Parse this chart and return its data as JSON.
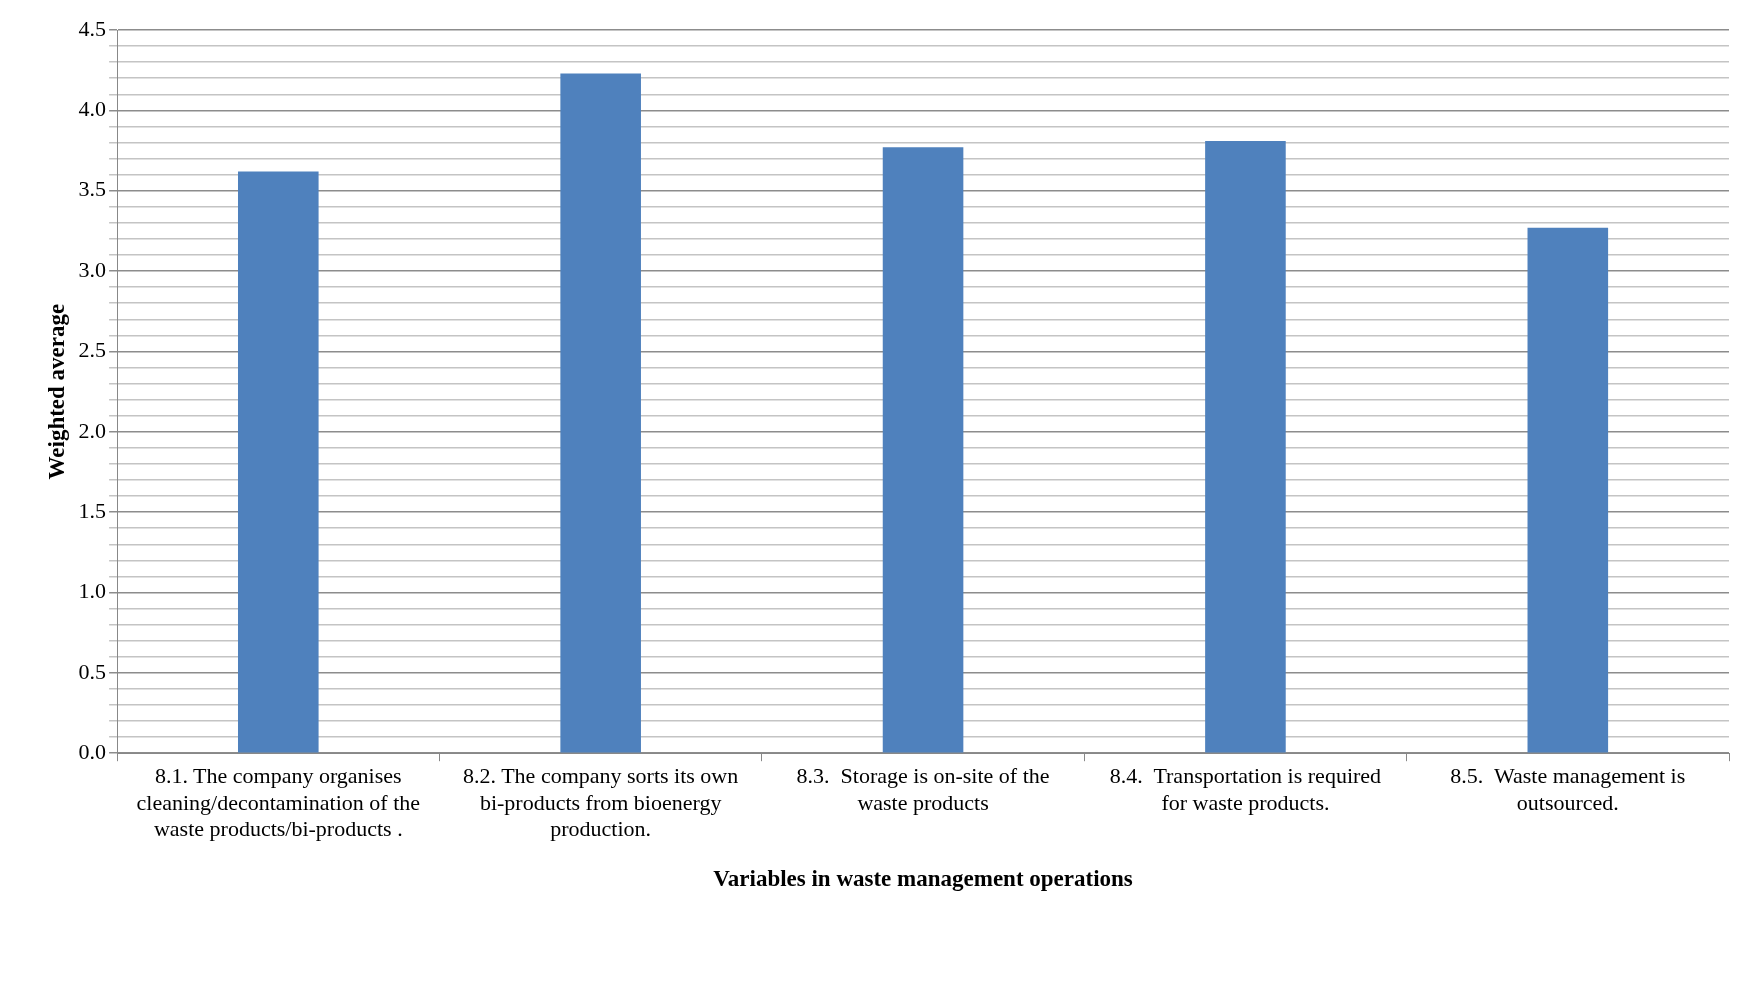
{
  "chart_data": {
    "type": "bar",
    "xlabel": "Variables in waste management operations",
    "ylabel": "Weighted average",
    "categories": [
      "8.1. The company organises cleaning/decontamination of the waste products/bi-products .",
      "8.2. The company sorts its own bi-products from bioenergy production.",
      "8.3.  Storage is on-site of the waste products",
      "8.4.  Transportation is required for waste products.",
      "8.5.  Waste management is outsourced."
    ],
    "values": [
      3.62,
      4.23,
      3.77,
      3.81,
      3.27
    ],
    "color": "#4f81bd",
    "ylim": [
      0,
      4.5
    ],
    "yticks": [
      {
        "value": 0,
        "label": "0.0"
      },
      {
        "value": 0.1,
        "label": null
      },
      {
        "value": 0.2,
        "label": null
      },
      {
        "value": 0.3,
        "label": null
      },
      {
        "value": 0.4,
        "label": null
      },
      {
        "value": 0.5,
        "label": "0.5"
      },
      {
        "value": 0.6,
        "label": null
      },
      {
        "value": 0.7,
        "label": null
      },
      {
        "value": 0.8,
        "label": null
      },
      {
        "value": 0.9,
        "label": null
      },
      {
        "value": 1,
        "label": "1.0"
      },
      {
        "value": 1.1,
        "label": null
      },
      {
        "value": 1.2,
        "label": null
      },
      {
        "value": 1.3,
        "label": null
      },
      {
        "value": 1.4,
        "label": null
      },
      {
        "value": 1.5,
        "label": "1.5"
      },
      {
        "value": 1.6,
        "label": null
      },
      {
        "value": 1.7,
        "label": null
      },
      {
        "value": 1.8,
        "label": null
      },
      {
        "value": 1.9,
        "label": null
      },
      {
        "value": 2,
        "label": "2.0"
      },
      {
        "value": 2.1,
        "label": null
      },
      {
        "value": 2.2,
        "label": null
      },
      {
        "value": 2.3,
        "label": null
      },
      {
        "value": 2.4,
        "label": null
      },
      {
        "value": 2.5,
        "label": "2.5"
      },
      {
        "value": 2.6,
        "label": null
      },
      {
        "value": 2.7,
        "label": null
      },
      {
        "value": 2.8,
        "label": null
      },
      {
        "value": 2.9,
        "label": null
      },
      {
        "value": 3,
        "label": "3.0"
      },
      {
        "value": 3.1,
        "label": null
      },
      {
        "value": 3.2,
        "label": null
      },
      {
        "value": 3.3,
        "label": null
      },
      {
        "value": 3.4,
        "label": null
      },
      {
        "value": 3.5,
        "label": "3.5"
      },
      {
        "value": 3.6,
        "label": null
      },
      {
        "value": 3.7,
        "label": null
      },
      {
        "value": 3.8,
        "label": null
      },
      {
        "value": 3.9,
        "label": null
      },
      {
        "value": 4,
        "label": "4.0"
      },
      {
        "value": 4.1,
        "label": null
      },
      {
        "value": 4.2,
        "label": null
      },
      {
        "value": 4.3,
        "label": null
      },
      {
        "value": 4.4,
        "label": null
      },
      {
        "value": 4.5,
        "label": "4.5"
      }
    ],
    "grid": true,
    "legend": false
  }
}
